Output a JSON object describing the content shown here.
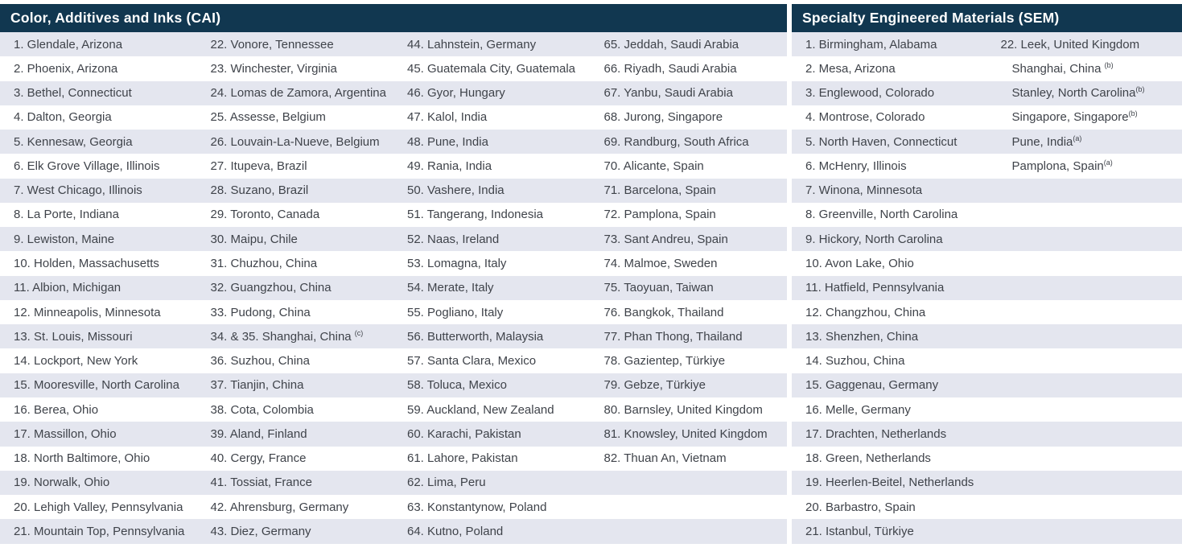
{
  "colors": {
    "header_bg": "#113750",
    "header_text": "#ffffff",
    "row_alt": "#e4e6ef",
    "row_white": "#ffffff",
    "text": "#3f434a"
  },
  "tables": [
    {
      "title": "Color, Additives and Inks (CAI)",
      "rows": 21,
      "columns": [
        [
          "1. Glendale, Arizona",
          "2. Phoenix, Arizona",
          "3. Bethel, Connecticut",
          "4. Dalton, Georgia",
          "5. Kennesaw, Georgia",
          "6. Elk Grove Village, Illinois",
          "7. West Chicago, Illinois",
          "8. La Porte, Indiana",
          "9. Lewiston, Maine",
          "10. Holden, Massachusetts",
          "11. Albion, Michigan",
          "12. Minneapolis, Minnesota",
          "13. St. Louis, Missouri",
          "14. Lockport, New York",
          "15. Mooresville, North Carolina",
          "16. Berea, Ohio",
          "17. Massillon, Ohio",
          "18. North Baltimore, Ohio",
          "19. Norwalk, Ohio",
          "20. Lehigh Valley, Pennsylvania",
          "21. Mountain Top, Pennsylvania"
        ],
        [
          "22. Vonore, Tennessee",
          "23. Winchester, Virginia",
          "24. Lomas de Zamora, Argentina",
          "25. Assesse, Belgium",
          "26. Louvain-La-Nueve, Belgium",
          "27. Itupeva, Brazil",
          "28. Suzano, Brazil",
          "29. Toronto, Canada",
          "30. Maipu, Chile",
          "31. Chuzhou, China",
          "32. Guangzhou, China",
          "33. Pudong, China",
          {
            "text": "34. & 35. Shanghai, China ",
            "sup": "(c)"
          },
          "36. Suzhou, China",
          "37. Tianjin, China",
          "38. Cota, Colombia",
          "39. Aland, Finland",
          "40. Cergy, France",
          "41. Tossiat, France",
          "42. Ahrensburg, Germany",
          "43. Diez, Germany"
        ],
        [
          "44. Lahnstein, Germany",
          "45. Guatemala City, Guatemala",
          "46. Gyor, Hungary",
          "47. Kalol, India",
          "48. Pune, India",
          "49. Rania, India",
          "50. Vashere, India",
          "51. Tangerang, Indonesia",
          "52. Naas, Ireland",
          "53. Lomagna, Italy",
          "54. Merate, Italy",
          "55. Pogliano, Italy",
          "56. Butterworth, Malaysia",
          "57. Santa Clara, Mexico",
          "58. Toluca, Mexico",
          "59. Auckland, New Zealand",
          "60. Karachi, Pakistan",
          "61. Lahore, Pakistan",
          "62. Lima, Peru",
          "63. Konstantynow, Poland",
          "64. Kutno, Poland"
        ],
        [
          "65. Jeddah, Saudi Arabia",
          "66. Riyadh, Saudi Arabia",
          "67. Yanbu, Saudi Arabia",
          "68. Jurong, Singapore",
          "69. Randburg, South Africa",
          "70. Alicante, Spain",
          "71. Barcelona, Spain",
          "72. Pamplona, Spain",
          "73. Sant Andreu, Spain",
          "74. Malmoe, Sweden",
          "75. Taoyuan, Taiwan",
          "76. Bangkok, Thailand",
          "77. Phan Thong, Thailand",
          "78. Gazientep, Türkiye",
          "79. Gebze, Türkiye",
          "80. Barnsley, United Kingdom",
          "81. Knowsley, United Kingdom",
          "82. Thuan An, Vietnam"
        ]
      ]
    },
    {
      "title": "Specialty Engineered Materials (SEM)",
      "rows": 21,
      "columns": [
        [
          "1. Birmingham, Alabama",
          "2. Mesa, Arizona",
          "3. Englewood, Colorado",
          "4. Montrose, Colorado",
          "5. North Haven, Connecticut",
          "6. McHenry, Illinois",
          "7. Winona, Minnesota",
          "8. Greenville, North Carolina",
          "9. Hickory, North Carolina",
          "10. Avon Lake, Ohio",
          "11. Hatfield, Pennsylvania",
          "12. Changzhou, China",
          "13. Shenzhen, China",
          "14. Suzhou, China",
          "15. Gaggenau, Germany",
          "16. Melle, Germany",
          "17. Drachten, Netherlands",
          "18. Green, Netherlands",
          "19. Heerlen-Beitel, Netherlands",
          "20. Barbastro, Spain",
          "21. Istanbul, Türkiye"
        ],
        [
          "22. Leek, United Kingdom",
          {
            "text": "Shanghai, China ",
            "sup": "(b)",
            "indent": true
          },
          {
            "text": "Stanley, North Carolina",
            "sup": "(b)",
            "indent": true
          },
          {
            "text": "Singapore, Singapore",
            "sup": "(b)",
            "indent": true
          },
          {
            "text": "Pune, India",
            "sup": "(a)",
            "indent": true
          },
          {
            "text": "Pamplona, Spain",
            "sup": "(a)",
            "indent": true
          }
        ]
      ]
    }
  ]
}
